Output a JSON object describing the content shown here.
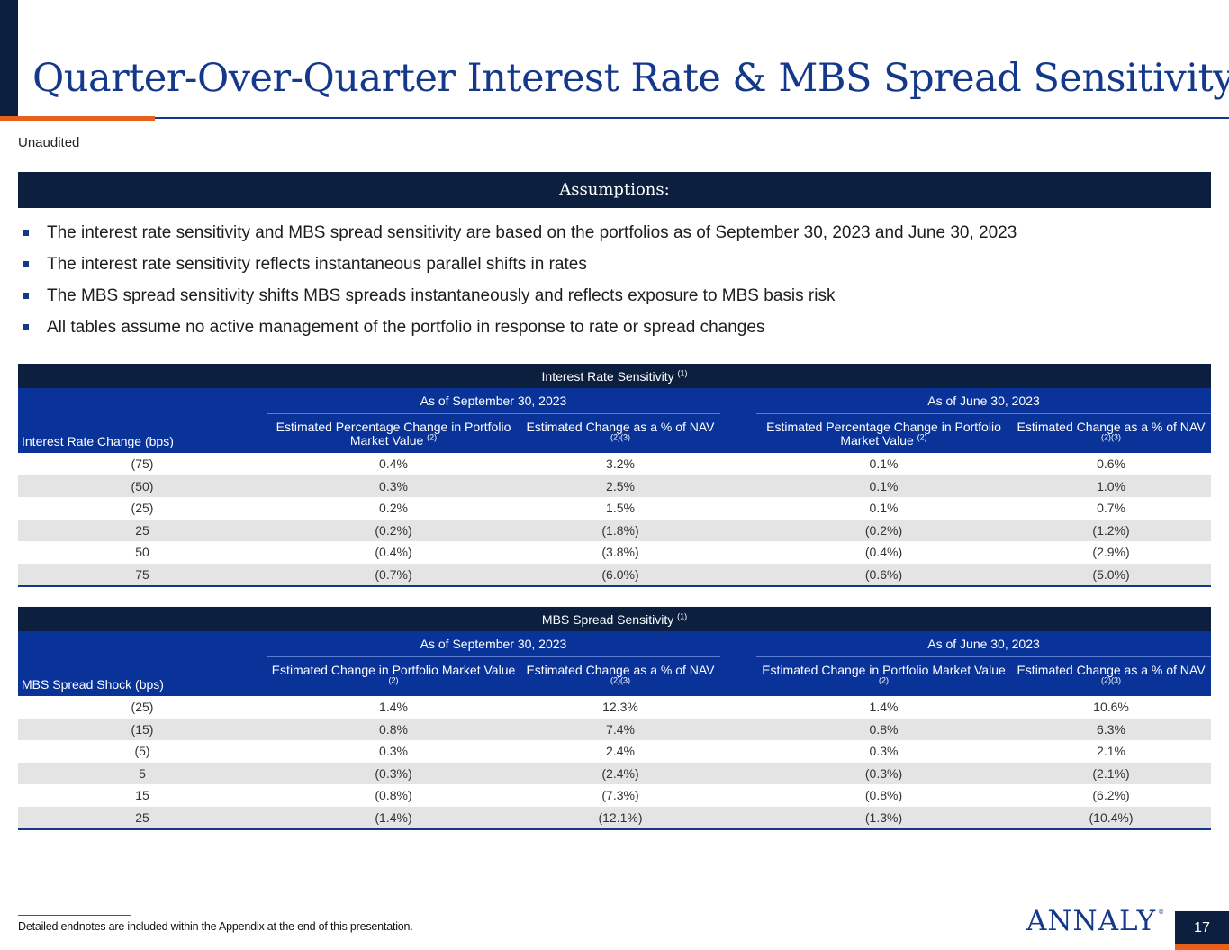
{
  "title": "Quarter-Over-Quarter Interest Rate & MBS Spread Sensitivity",
  "subtitle": "Unaudited",
  "assumptions": {
    "heading": "Assumptions:",
    "bullets": [
      "The interest rate sensitivity and MBS spread sensitivity are based on the portfolios as of September 30, 2023 and June 30, 2023",
      "The interest rate sensitivity reflects instantaneous parallel shifts in rates",
      "The MBS spread sensitivity shifts MBS spreads instantaneously and reflects exposure to MBS basis risk",
      "All tables assume no active management of the portfolio in response to rate or spread changes"
    ]
  },
  "interest_rate_table": {
    "title": "Interest Rate Sensitivity",
    "title_note": "(1)",
    "row_header": "Interest Rate Change (bps)",
    "period1": "As of September 30, 2023",
    "period2": "As of June 30, 2023",
    "col_a": "Estimated Percentage Change in Portfolio Market Value",
    "col_a_note": "(2)",
    "col_b": "Estimated Change as a % of NAV",
    "col_b_note": "(2)(3)",
    "rows": [
      [
        "(75)",
        "0.4%",
        "3.2%",
        "0.1%",
        "0.6%"
      ],
      [
        "(50)",
        "0.3%",
        "2.5%",
        "0.1%",
        "1.0%"
      ],
      [
        "(25)",
        "0.2%",
        "1.5%",
        "0.1%",
        "0.7%"
      ],
      [
        "25",
        "(0.2%)",
        "(1.8%)",
        "(0.2%)",
        "(1.2%)"
      ],
      [
        "50",
        "(0.4%)",
        "(3.8%)",
        "(0.4%)",
        "(2.9%)"
      ],
      [
        "75",
        "(0.7%)",
        "(6.0%)",
        "(0.6%)",
        "(5.0%)"
      ]
    ]
  },
  "mbs_spread_table": {
    "title": "MBS Spread Sensitivity",
    "title_note": "(1)",
    "row_header": "MBS Spread Shock (bps)",
    "period1": "As of September 30, 2023",
    "period2": "As of June 30, 2023",
    "col_a": "Estimated Change in Portfolio Market Value",
    "col_a_note": "(2)",
    "col_b": "Estimated Change as a % of NAV",
    "col_b_note": "(2)(3)",
    "rows": [
      [
        "(25)",
        "1.4%",
        "12.3%",
        "1.4%",
        "10.6%"
      ],
      [
        "(15)",
        "0.8%",
        "7.4%",
        "0.8%",
        "6.3%"
      ],
      [
        "(5)",
        "0.3%",
        "2.4%",
        "0.3%",
        "2.1%"
      ],
      [
        "5",
        "(0.3%)",
        "(2.4%)",
        "(0.3%)",
        "(2.1%)"
      ],
      [
        "15",
        "(0.8%)",
        "(7.3%)",
        "(0.8%)",
        "(6.2%)"
      ],
      [
        "25",
        "(1.4%)",
        "(12.1%)",
        "(1.3%)",
        "(10.4%)"
      ]
    ]
  },
  "footnote": "Detailed endnotes are included within the Appendix at the end of this presentation.",
  "logo_text": "ANNALY",
  "logo_mark": "®",
  "page_number": "17",
  "colors": {
    "navy": "#0c1f3f",
    "royal": "#0a3399",
    "title_blue": "#14398a",
    "orange": "#e8601c",
    "shade": "#e4e4e4"
  }
}
